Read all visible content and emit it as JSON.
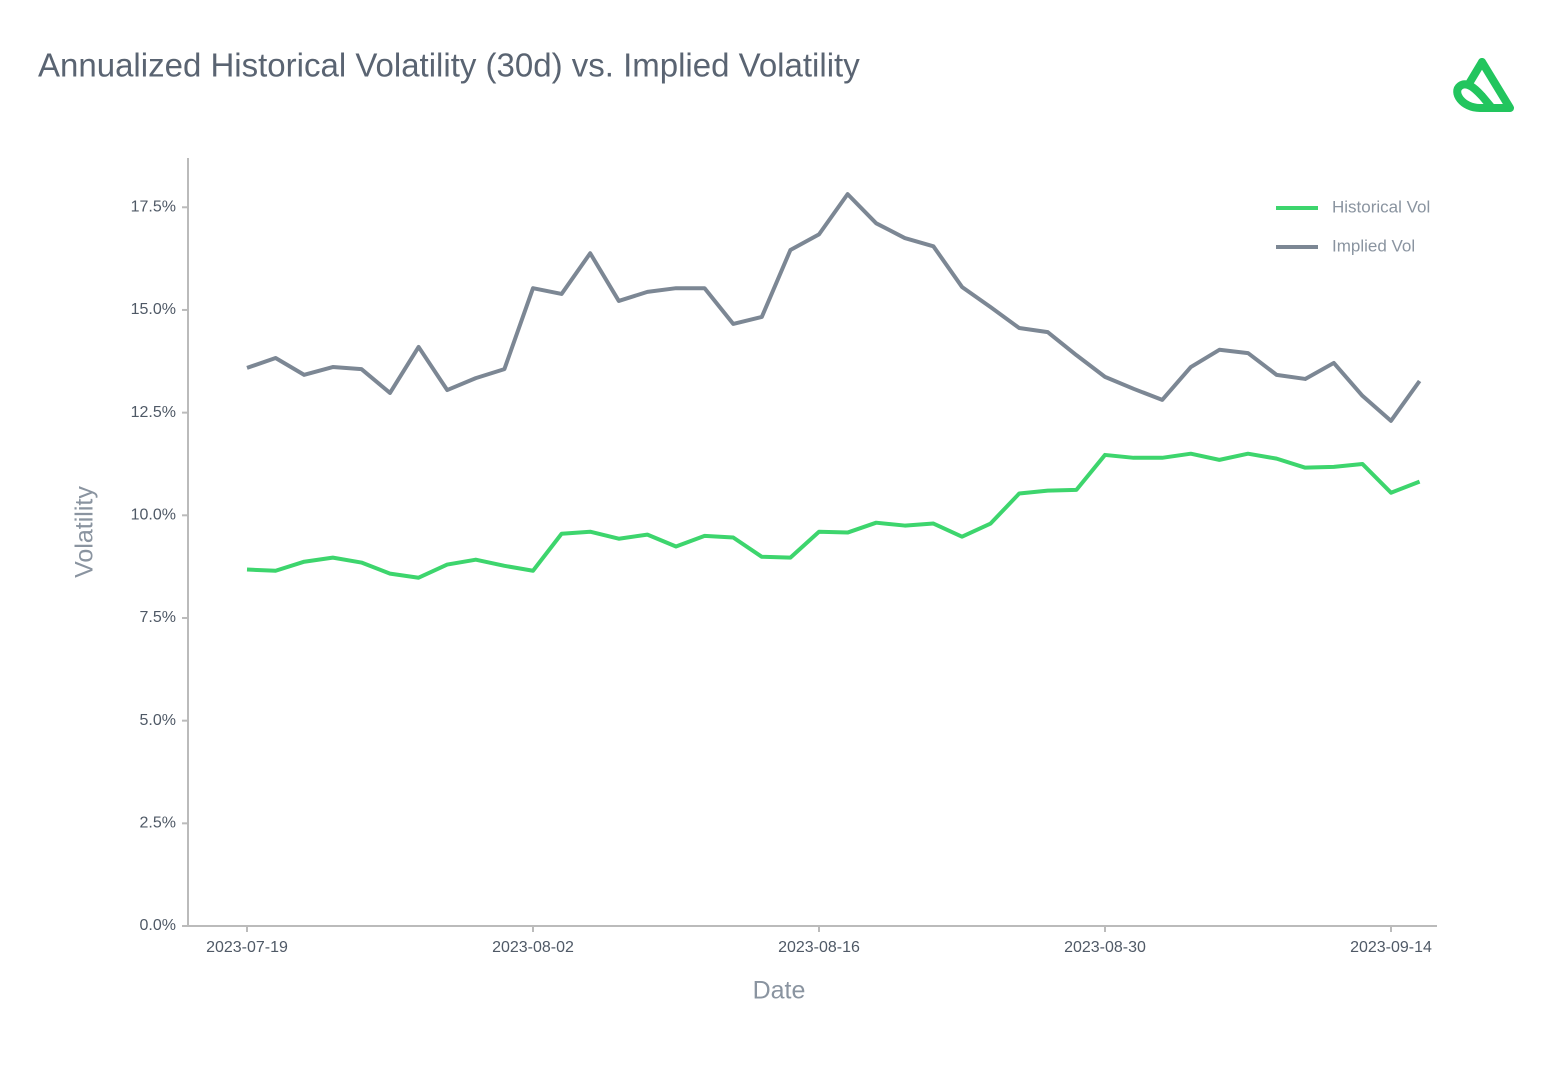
{
  "chart_data": {
    "type": "line",
    "title": "Annualized Historical Volatility (30d) vs. Implied Volatility",
    "x_label": "Date",
    "y_label": "Volatility",
    "categories": [
      "2023-07-19",
      null,
      null,
      null,
      null,
      null,
      null,
      null,
      null,
      null,
      "2023-08-02",
      null,
      null,
      null,
      null,
      null,
      null,
      null,
      null,
      null,
      "2023-08-16",
      null,
      null,
      null,
      null,
      null,
      null,
      null,
      null,
      null,
      "2023-08-30",
      null,
      null,
      null,
      null,
      null,
      null,
      null,
      null,
      null,
      "2023-09-14",
      null
    ],
    "series": [
      {
        "name": "Historical Vol",
        "color": "#3dd56d",
        "values": [
          8.68,
          8.65,
          8.87,
          8.97,
          8.85,
          8.58,
          8.48,
          8.8,
          8.92,
          8.77,
          8.65,
          9.55,
          9.6,
          9.43,
          9.53,
          9.24,
          9.5,
          9.46,
          8.99,
          8.97,
          9.6,
          9.58,
          9.82,
          9.75,
          9.8,
          9.48,
          9.8,
          10.53,
          10.6,
          10.62,
          11.47,
          11.4,
          11.4,
          11.5,
          11.35,
          11.5,
          11.38,
          11.16,
          11.18,
          11.25,
          10.55,
          10.82
        ]
      },
      {
        "name": "Implied Vol",
        "color": "#7c8794",
        "values": [
          13.59,
          13.83,
          13.42,
          13.61,
          13.56,
          12.98,
          14.1,
          13.05,
          13.34,
          13.56,
          15.53,
          15.39,
          16.38,
          15.22,
          15.44,
          15.53,
          15.53,
          14.66,
          14.83,
          16.46,
          16.84,
          17.82,
          17.11,
          16.75,
          16.55,
          15.56,
          15.07,
          14.56,
          14.46,
          13.9,
          13.37,
          13.08,
          12.81,
          13.61,
          14.03,
          13.95,
          13.42,
          13.32,
          13.71,
          12.91,
          12.3,
          13.27
        ]
      }
    ],
    "ylim": [
      0,
      18.7
    ],
    "yticks": [
      {
        "value": 0,
        "label": "0.0%"
      },
      {
        "value": 2.5,
        "label": "2.5%"
      },
      {
        "value": 5,
        "label": "5.0%"
      },
      {
        "value": 7.5,
        "label": "7.5%"
      },
      {
        "value": 10,
        "label": "10.0%"
      },
      {
        "value": 12.5,
        "label": "12.5%"
      },
      {
        "value": 15,
        "label": "15.0%"
      },
      {
        "value": 17.5,
        "label": "17.5%"
      }
    ],
    "legend": "top-right",
    "grid": false
  }
}
